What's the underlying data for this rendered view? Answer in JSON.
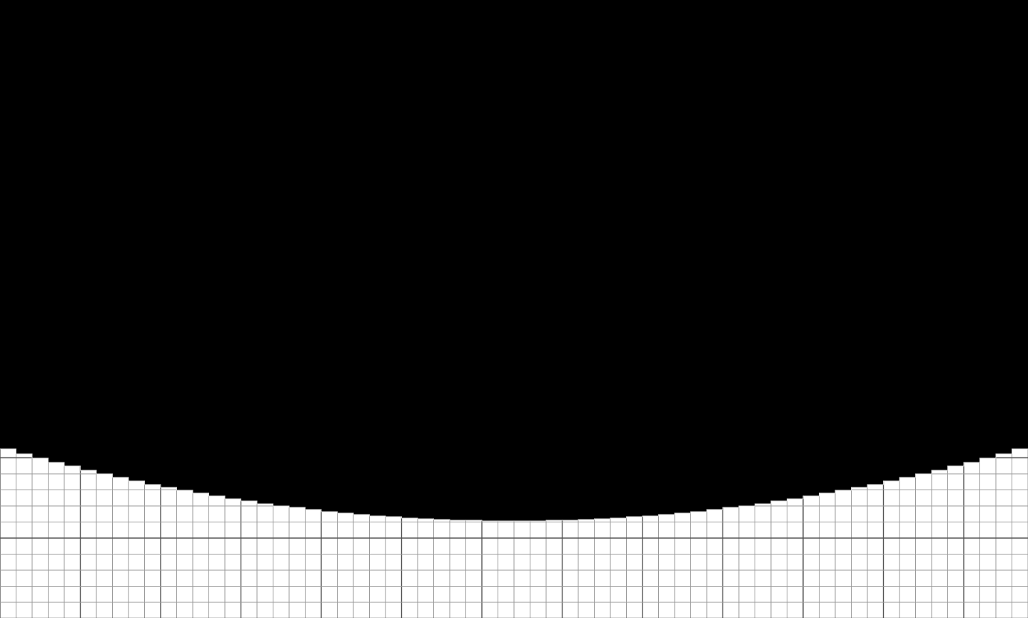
{
  "scene": {
    "background_color": "#000000",
    "grid_fill_color": "#ffffff",
    "minor_line_color": "#9a9a9a",
    "major_line_color": "#555555",
    "minor_cells_per_major": 5,
    "description_icon": "grid-paper-horizon"
  }
}
